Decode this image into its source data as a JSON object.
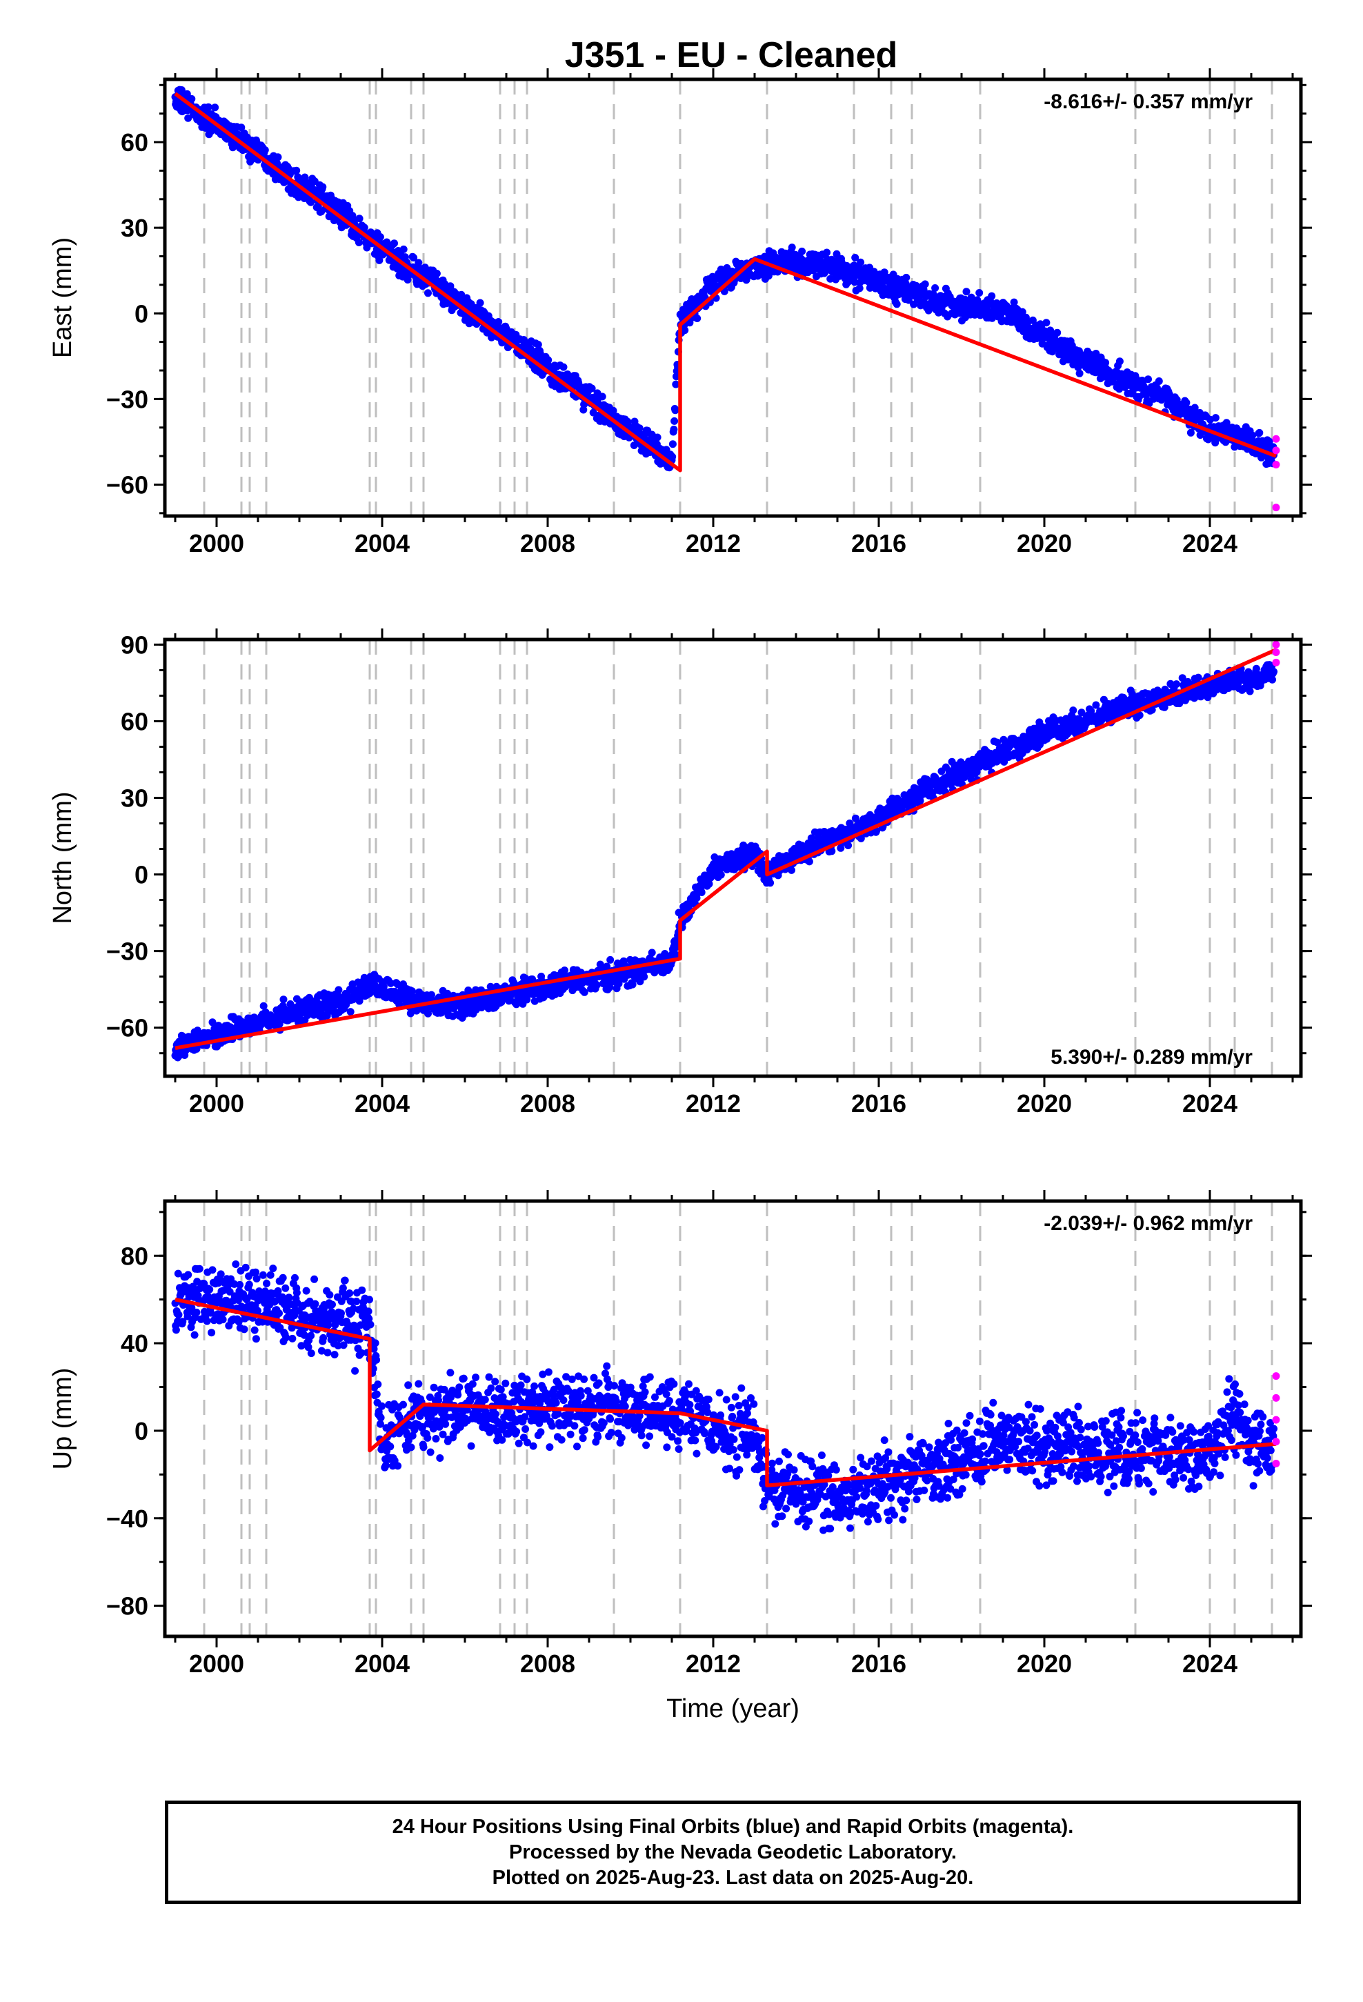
{
  "chart_data": [
    {
      "type": "scatter",
      "title": "J351  - EU - Cleaned",
      "xlabel": "",
      "ylabel": "East (mm)",
      "xlim": [
        1998.75,
        2026.2
      ],
      "ylim": [
        -71,
        82
      ],
      "x_ticks": [
        "2000",
        "2004",
        "2008",
        "2012",
        "2016",
        "2020",
        "2024"
      ],
      "y_ticks": [
        "60",
        "30",
        "0",
        "−30",
        "−60"
      ],
      "rate_text": "-8.616+/- 0.357 mm/yr",
      "rate_position": "top-right",
      "grid": false,
      "colors": {
        "final": "#0000ff",
        "rapid": "#ff00ff",
        "model": "#ff0000",
        "event_lines": "#bfbfbf"
      },
      "series": [
        {
          "name": "Final Orbits (blue)",
          "x": [
            1999.0,
            2000.0,
            2001.0,
            2002.0,
            2003.0,
            2004.0,
            2005.0,
            2006.0,
            2007.0,
            2008.0,
            2009.0,
            2010.0,
            2011.0,
            2011.2,
            2012.0,
            2013.0,
            2014.0,
            2015.0,
            2016.0,
            2017.0,
            2018.0,
            2019.0,
            2020.0,
            2021.0,
            2022.0,
            2023.0,
            2024.0,
            2025.0,
            2025.55
          ],
          "y": [
            75,
            66,
            57,
            45,
            35,
            22,
            13,
            2,
            -8,
            -19,
            -30,
            -41,
            -52,
            -4,
            10,
            17,
            18,
            16,
            11,
            6,
            2,
            1,
            -8,
            -17,
            -24,
            -31,
            -40,
            -45,
            -49
          ]
        },
        {
          "name": "Rapid Orbits (magenta)",
          "x": [
            2025.6,
            2025.6,
            2025.6,
            2025.6
          ],
          "y": [
            -44,
            -48,
            -53,
            -68
          ]
        },
        {
          "name": "model",
          "x": [
            1999.0,
            2011.2,
            2011.2,
            2013.0,
            2025.6
          ],
          "y": [
            77,
            -55,
            -4,
            19,
            -50
          ]
        }
      ],
      "event_lines_x": [
        1999.7,
        2000.6,
        2000.8,
        2001.2,
        2003.7,
        2003.85,
        2004.7,
        2005.0,
        2006.85,
        2007.2,
        2007.5,
        2009.6,
        2011.2,
        2013.3,
        2015.4,
        2016.3,
        2016.8,
        2018.45,
        2022.2,
        2024.0,
        2024.6,
        2025.5
      ]
    },
    {
      "type": "scatter",
      "title": "",
      "xlabel": "",
      "ylabel": "North (mm)",
      "xlim": [
        1998.75,
        2026.2
      ],
      "ylim": [
        -79,
        92
      ],
      "x_ticks": [
        "2000",
        "2004",
        "2008",
        "2012",
        "2016",
        "2020",
        "2024"
      ],
      "y_ticks": [
        "90",
        "60",
        "30",
        "0",
        "−30",
        "−60"
      ],
      "rate_text": "5.390+/- 0.289 mm/yr",
      "rate_position": "bottom-right",
      "grid": false,
      "colors": {
        "final": "#0000ff",
        "rapid": "#ff00ff",
        "model": "#ff0000",
        "event_lines": "#bfbfbf"
      },
      "series": [
        {
          "name": "Final Orbits (blue)",
          "x": [
            1999.0,
            2000.0,
            2001.0,
            2002.0,
            2003.0,
            2003.8,
            2004.0,
            2005.0,
            2006.0,
            2007.0,
            2008.0,
            2009.0,
            2010.0,
            2011.0,
            2011.2,
            2012.0,
            2013.0,
            2013.3,
            2014.0,
            2015.0,
            2016.0,
            2017.0,
            2018.0,
            2019.0,
            2020.0,
            2021.0,
            2022.0,
            2023.0,
            2024.0,
            2025.0,
            2025.55
          ],
          "y": [
            -68,
            -63,
            -58,
            -54,
            -50,
            -43,
            -45,
            -50,
            -51,
            -47,
            -44,
            -41,
            -38,
            -34,
            -18,
            2,
            8,
            0,
            8,
            15,
            21,
            32,
            40,
            48,
            55,
            61,
            66,
            70,
            74,
            76,
            80
          ]
        },
        {
          "name": "Rapid Orbits (magenta)",
          "x": [
            2025.6,
            2025.6,
            2025.6
          ],
          "y": [
            83,
            87,
            90
          ]
        },
        {
          "name": "model",
          "x": [
            1999.0,
            2011.2,
            2011.2,
            2013.3,
            2013.3,
            2025.6
          ],
          "y": [
            -68,
            -33,
            -18,
            9,
            0,
            88
          ]
        }
      ],
      "event_lines_x": [
        1999.7,
        2000.6,
        2000.8,
        2001.2,
        2003.7,
        2003.85,
        2004.7,
        2005.0,
        2006.85,
        2007.2,
        2007.5,
        2009.6,
        2011.2,
        2013.3,
        2015.4,
        2016.3,
        2016.8,
        2018.45,
        2022.2,
        2024.0,
        2024.6,
        2025.5
      ]
    },
    {
      "type": "scatter",
      "title": "",
      "xlabel": "Time (year)",
      "ylabel": "Up (mm)",
      "xlim": [
        1998.75,
        2026.2
      ],
      "ylim": [
        -94,
        105
      ],
      "x_ticks": [
        "2000",
        "2004",
        "2008",
        "2012",
        "2016",
        "2020",
        "2024"
      ],
      "y_ticks": [
        "80",
        "40",
        "0",
        "−40",
        "−80"
      ],
      "rate_text": "-2.039+/- 0.962 mm/yr",
      "rate_position": "top-right",
      "grid": false,
      "colors": {
        "final": "#0000ff",
        "rapid": "#ff00ff",
        "model": "#ff0000",
        "event_lines": "#bfbfbf"
      },
      "series": [
        {
          "name": "Final Orbits (blue)",
          "x": [
            1999.0,
            2000.0,
            2001.0,
            2002.0,
            2003.0,
            2003.7,
            2004.0,
            2005.0,
            2006.0,
            2007.0,
            2008.0,
            2009.0,
            2010.0,
            2011.0,
            2012.0,
            2013.0,
            2013.3,
            2014.0,
            2015.0,
            2016.0,
            2017.0,
            2018.0,
            2019.0,
            2020.0,
            2021.0,
            2022.0,
            2023.0,
            2024.0,
            2024.6,
            2025.0,
            2025.55
          ],
          "y": [
            58,
            60,
            57,
            52,
            50,
            48,
            -5,
            5,
            8,
            8,
            10,
            12,
            10,
            8,
            2,
            -2,
            -25,
            -28,
            -30,
            -25,
            -18,
            -12,
            -4,
            -6,
            -8,
            -10,
            -10,
            -12,
            10,
            -6,
            -8
          ]
        },
        {
          "name": "Rapid Orbits (magenta)",
          "x": [
            2025.6,
            2025.6,
            2025.6,
            2025.6,
            2025.6
          ],
          "y": [
            25,
            15,
            5,
            -5,
            -15
          ]
        },
        {
          "name": "model",
          "x": [
            1999.0,
            2003.7,
            2003.7,
            2005.0,
            2011.2,
            2013.3,
            2013.3,
            2025.6
          ],
          "y": [
            60,
            42,
            -9,
            12,
            8,
            0,
            -25,
            -6
          ]
        }
      ],
      "event_lines_x": [
        1999.7,
        2000.6,
        2000.8,
        2001.2,
        2003.7,
        2003.85,
        2004.7,
        2005.0,
        2006.85,
        2007.2,
        2007.5,
        2009.6,
        2011.2,
        2013.3,
        2015.4,
        2016.3,
        2016.8,
        2018.45,
        2022.2,
        2024.0,
        2024.6,
        2025.5
      ]
    }
  ],
  "footer": {
    "line1": "24 Hour Positions Using Final Orbits (blue) and Rapid Orbits (magenta).",
    "line2": "Processed by the Nevada Geodetic Laboratory.",
    "line3": "Plotted on 2025-Aug-23. Last data on 2025-Aug-20."
  }
}
